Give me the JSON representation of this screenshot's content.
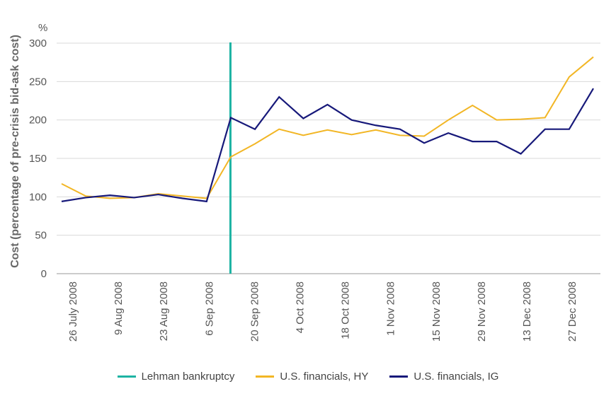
{
  "chart_data": {
    "type": "line",
    "title": "",
    "ylabel": "Cost (percentage of pre-crisis bid-ask cost)",
    "yunit": "%",
    "ylim": [
      0,
      300
    ],
    "yticks": [
      0,
      50,
      100,
      150,
      200,
      250,
      300
    ],
    "grid": true,
    "legend_position": "bottom",
    "xtick_labels": [
      "26 July 2008",
      "9 Aug 2008",
      "23 Aug 2008",
      "6 Sep 2008",
      "20 Sep 2008",
      "4 Oct 2008",
      "18 Oct 2008",
      "1 Nov 2008",
      "15 Nov 2008",
      "29 Nov 2008",
      "13 Dec 2008",
      "27 Dec 2008"
    ],
    "event_marker": {
      "name": "Lehman bankruptcy",
      "index": 7,
      "color": "#1db3a3"
    },
    "series": [
      {
        "name": "U.S. financials, HY",
        "color": "#f2b625",
        "values": [
          117,
          101,
          98,
          99,
          104,
          101,
          98,
          152,
          169,
          188,
          180,
          187,
          181,
          187,
          180,
          179,
          200,
          219,
          200,
          201,
          203,
          256,
          282
        ]
      },
      {
        "name": "U.S. financials, IG",
        "color": "#17197a",
        "values": [
          94,
          99,
          102,
          99,
          103,
          98,
          94,
          203,
          188,
          230,
          202,
          220,
          200,
          193,
          188,
          170,
          183,
          172,
          172,
          156,
          188,
          188,
          241
        ]
      }
    ]
  }
}
